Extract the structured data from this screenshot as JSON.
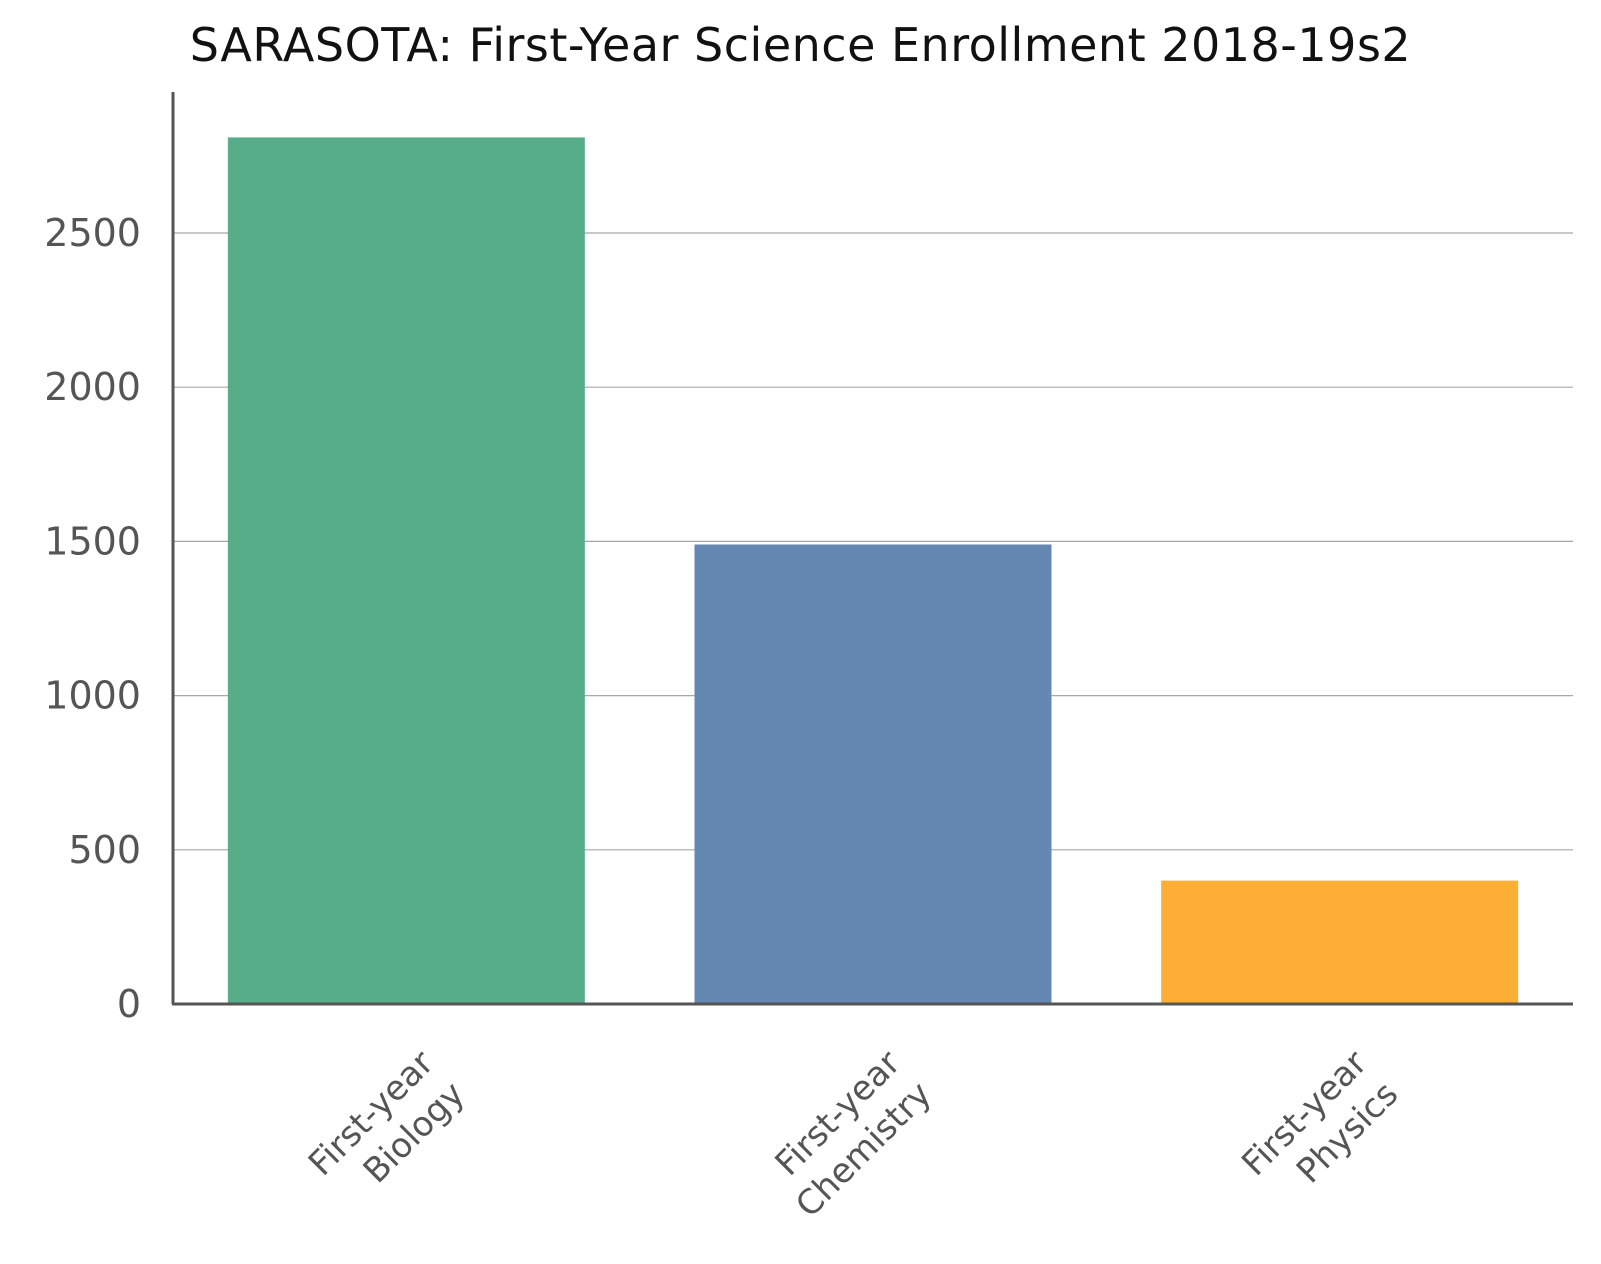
{
  "chart_data": {
    "type": "bar",
    "title": "SARASOTA: First-Year Science Enrollment 2018-19s2",
    "xlabel": "",
    "ylabel": "",
    "categories": [
      [
        "First-year",
        "Biology"
      ],
      [
        "First-year",
        "Chemistry"
      ],
      [
        "First-year",
        "Physics"
      ]
    ],
    "values": [
      2810,
      1490,
      400
    ],
    "colors": [
      "#57ad89",
      "#6488b2",
      "#fdae35"
    ],
    "ylim": [
      0,
      2950
    ],
    "yticks": [
      0,
      500,
      1000,
      1500,
      2000,
      2500
    ],
    "grid": true,
    "legend": "none"
  }
}
